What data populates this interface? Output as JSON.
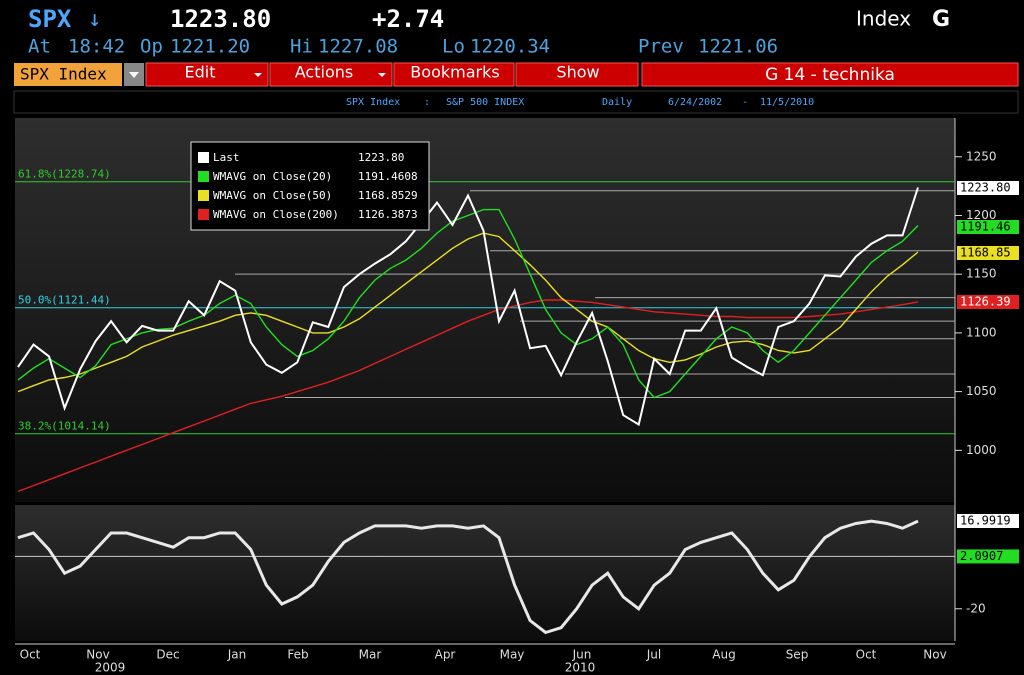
{
  "header": {
    "symbol": "SPX",
    "arrow": "↓",
    "price": "1223.80",
    "change": "+2.74",
    "right_label": "Index",
    "right_key": "G",
    "quote_line": [
      {
        "label": "At",
        "value": "18:42"
      },
      {
        "label": "Op",
        "value": "1221.20"
      },
      {
        "label": "Hi",
        "value": "1227.08"
      },
      {
        "label": "Lo",
        "value": "1220.34"
      },
      {
        "label": "Prev",
        "value": "1221.06"
      }
    ]
  },
  "menu": {
    "ticker": "SPX Index",
    "items": [
      "Edit",
      "Actions",
      "Bookmarks",
      "Show"
    ],
    "page": "G 14 - technika"
  },
  "subheader": {
    "ticker": "SPX Index",
    "separator": ":",
    "name": "S&P 500 INDEX",
    "period": "Daily",
    "start": "6/24/2002",
    "dash": "-",
    "end": "11/5/2010"
  },
  "chart_data": [
    {
      "type": "line",
      "ylim": [
        956,
        1283
      ],
      "yticks": [
        1000,
        1050,
        1100,
        1150,
        1200,
        1250
      ],
      "x_labels": [
        "Oct",
        "Nov",
        "Dec",
        "Jan",
        "Feb",
        "Mar",
        "Apr",
        "May",
        "Jun",
        "Jul",
        "Aug",
        "Sep",
        "Oct",
        "Nov"
      ],
      "year_labels": [
        "2009",
        "2010"
      ],
      "fib_levels": [
        {
          "value": 1228.74,
          "label": "61.8%(1228.74)",
          "color": "#2ecc2e"
        },
        {
          "value": 1121.44,
          "label": "50.0%(1121.44)",
          "color": "#2fd0e0"
        },
        {
          "value": 1014.14,
          "label": "38.2%(1014.14)",
          "color": "#2ecc2e"
        }
      ],
      "levels": [
        1221,
        1170,
        1150,
        1130,
        1110,
        1095,
        1065,
        1045
      ],
      "series": [
        {
          "name": "Last",
          "color": "#ffffff",
          "legend_value": "1223.80",
          "axis_label": "1223.80",
          "values": [
            1071,
            1090,
            1080,
            1036,
            1069,
            1093,
            1110,
            1092,
            1106,
            1102,
            1102,
            1127,
            1115,
            1144,
            1136,
            1092,
            1073,
            1066,
            1075,
            1109,
            1105,
            1139,
            1150,
            1159,
            1167,
            1178,
            1194,
            1211,
            1192,
            1217,
            1187,
            1110,
            1136,
            1087,
            1089,
            1064,
            1092,
            1117,
            1076,
            1030,
            1022,
            1078,
            1065,
            1102,
            1102,
            1121,
            1079,
            1071,
            1064,
            1105,
            1110,
            1125,
            1149,
            1148,
            1165,
            1176,
            1183,
            1183,
            1223.8
          ]
        },
        {
          "name": "WMAVG on Close(20)",
          "color": "#22dd22",
          "legend_value": "1191.4608",
          "axis_label": "1191.46",
          "values": [
            1060,
            1070,
            1078,
            1070,
            1062,
            1072,
            1090,
            1095,
            1100,
            1103,
            1104,
            1110,
            1115,
            1125,
            1132,
            1125,
            1105,
            1090,
            1080,
            1085,
            1095,
            1110,
            1130,
            1145,
            1155,
            1162,
            1172,
            1185,
            1195,
            1200,
            1205,
            1205,
            1180,
            1150,
            1120,
            1100,
            1090,
            1095,
            1105,
            1090,
            1060,
            1045,
            1050,
            1065,
            1080,
            1095,
            1105,
            1100,
            1085,
            1075,
            1085,
            1100,
            1115,
            1130,
            1145,
            1160,
            1170,
            1178,
            1191.4608
          ]
        },
        {
          "name": "WMAVG on Close(50)",
          "color": "#e8e020",
          "legend_value": "1168.8529",
          "axis_label": "1168.85",
          "values": [
            1050,
            1055,
            1060,
            1062,
            1065,
            1070,
            1075,
            1080,
            1088,
            1093,
            1098,
            1102,
            1106,
            1110,
            1115,
            1117,
            1115,
            1110,
            1105,
            1100,
            1100,
            1105,
            1112,
            1122,
            1132,
            1142,
            1152,
            1162,
            1172,
            1180,
            1185,
            1182,
            1170,
            1158,
            1145,
            1130,
            1120,
            1110,
            1105,
            1095,
            1085,
            1078,
            1075,
            1077,
            1082,
            1088,
            1092,
            1093,
            1090,
            1085,
            1083,
            1085,
            1095,
            1105,
            1120,
            1135,
            1148,
            1158,
            1168.8529
          ]
        },
        {
          "name": "WMAVG on Close(200)",
          "color": "#e02020",
          "legend_value": "1126.3873",
          "axis_label": "1126.39",
          "values": [
            965,
            970,
            975,
            980,
            985,
            990,
            995,
            1000,
            1005,
            1010,
            1015,
            1020,
            1025,
            1030,
            1035,
            1040,
            1043,
            1046,
            1050,
            1054,
            1058,
            1063,
            1068,
            1074,
            1080,
            1086,
            1092,
            1098,
            1104,
            1110,
            1115,
            1120,
            1123,
            1126,
            1128,
            1128,
            1127,
            1126,
            1124,
            1122,
            1120,
            1118,
            1117,
            1116,
            1115,
            1114,
            1114,
            1113,
            1113,
            1113,
            1113,
            1114,
            1115,
            1116,
            1118,
            1120,
            1122,
            1124,
            1126.3873
          ]
        }
      ]
    },
    {
      "type": "line",
      "ylim": [
        -33.6,
        23.8
      ],
      "yticks": [
        -20
      ],
      "signal": {
        "value": 2.0907,
        "label": "2.0907",
        "color": "#22dd22"
      },
      "series": [
        {
          "color": "#e8e8e8",
          "axis_label": "16.9919",
          "values": [
            10,
            12,
            5,
            -5,
            -2,
            5,
            12,
            12,
            10,
            8,
            6,
            10,
            10,
            12,
            12,
            5,
            -10,
            -18,
            -15,
            -10,
            0,
            8,
            12,
            15,
            15,
            15,
            14,
            15,
            15,
            14,
            15,
            10,
            -10,
            -25,
            -30,
            -28,
            -20,
            -10,
            -5,
            -15,
            -20,
            -10,
            -5,
            5,
            8,
            10,
            12,
            5,
            -5,
            -12,
            -8,
            2,
            10,
            14,
            16,
            17,
            16,
            14,
            16.9919
          ]
        }
      ]
    }
  ]
}
